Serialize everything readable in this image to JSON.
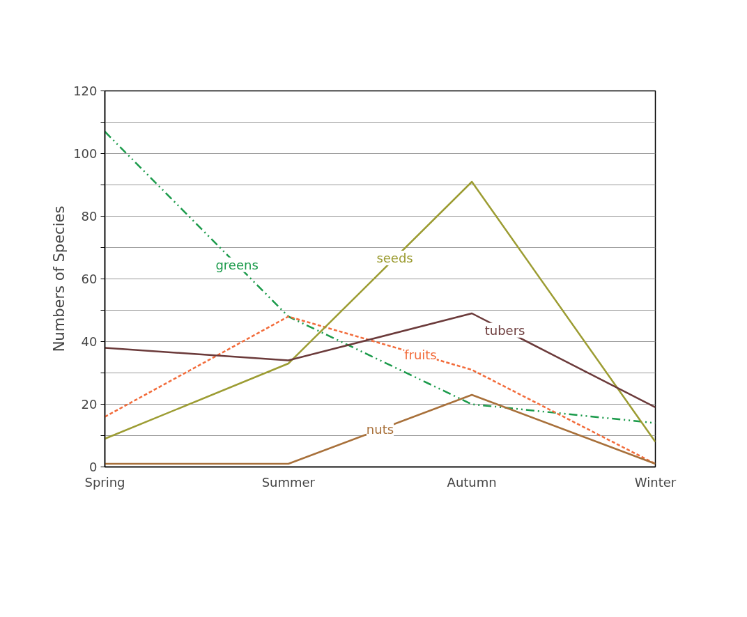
{
  "chart_data": {
    "type": "line",
    "ylabel": "Numbers of Species",
    "categories": [
      "Spring",
      "Summer",
      "Autumn",
      "Winter"
    ],
    "series": [
      {
        "name": "greens",
        "color": "#1a9a4a",
        "values": [
          107,
          48,
          20,
          14
        ],
        "line_style": "dashed"
      },
      {
        "name": "fruits",
        "color": "#f26b3a",
        "values": [
          16,
          48,
          31,
          1
        ],
        "line_style": "dotted"
      },
      {
        "name": "seeds",
        "color": "#9c9c32",
        "values": [
          9,
          33,
          91,
          8
        ],
        "line_style": "solid"
      },
      {
        "name": "tubers",
        "color": "#6b3a3a",
        "values": [
          38,
          34,
          49,
          19
        ],
        "line_style": "solid"
      },
      {
        "name": "nuts",
        "color": "#a8703a",
        "values": [
          1,
          1,
          23,
          1
        ],
        "line_style": "solid"
      }
    ],
    "ylim": [
      0,
      120
    ],
    "yticks": [
      0,
      {
        "value": 10,
        "label": null
      },
      20,
      {
        "value": 30,
        "label": null
      },
      40,
      {
        "value": 50,
        "label": null
      },
      60,
      {
        "value": 70,
        "label": null
      },
      80,
      {
        "value": 90,
        "label": null
      },
      100,
      {
        "value": 110,
        "label": null
      },
      120
    ],
    "grid": "y",
    "marker": "none"
  }
}
